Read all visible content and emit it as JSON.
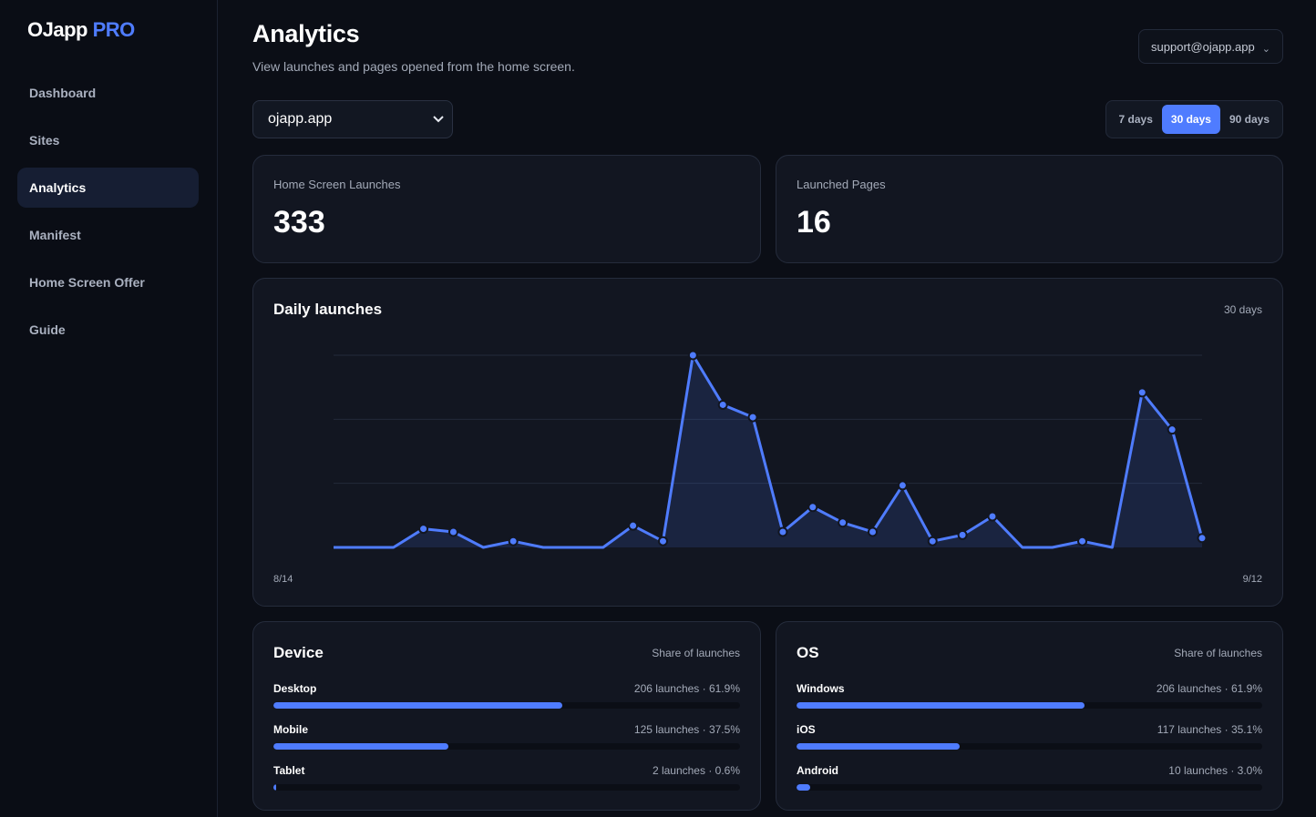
{
  "brand": {
    "name": "OJapp",
    "suffix": "PRO"
  },
  "sidebar": {
    "items": [
      {
        "label": "Dashboard",
        "active": false
      },
      {
        "label": "Sites",
        "active": false
      },
      {
        "label": "Analytics",
        "active": true
      },
      {
        "label": "Manifest",
        "active": false
      },
      {
        "label": "Home Screen Offer",
        "active": false
      },
      {
        "label": "Guide",
        "active": false
      }
    ]
  },
  "header": {
    "title": "Analytics",
    "subtitle": "View launches and pages opened from the home screen.",
    "account": "support@ojapp.app"
  },
  "filters": {
    "site": "ojapp.app",
    "ranges": [
      {
        "label": "7 days",
        "active": false
      },
      {
        "label": "30 days",
        "active": true
      },
      {
        "label": "90 days",
        "active": false
      }
    ]
  },
  "stats": {
    "launches": {
      "label": "Home Screen Launches",
      "value": "333"
    },
    "pages": {
      "label": "Launched Pages",
      "value": "16"
    }
  },
  "daily": {
    "title": "Daily launches",
    "note": "30 days",
    "x_start": "8/14",
    "x_end": "9/12"
  },
  "chart_data": {
    "type": "line",
    "title": "Daily launches",
    "x": [
      "8/14",
      "8/15",
      "8/16",
      "8/17",
      "8/18",
      "8/19",
      "8/20",
      "8/21",
      "8/22",
      "8/23",
      "8/24",
      "8/25",
      "8/26",
      "8/27",
      "8/28",
      "8/29",
      "8/30",
      "8/31",
      "9/1",
      "9/2",
      "9/3",
      "9/4",
      "9/5",
      "9/6",
      "9/7",
      "9/8",
      "9/9",
      "9/10",
      "9/11",
      "9/12"
    ],
    "values": [
      0,
      0,
      0,
      3,
      2.5,
      0,
      1,
      0,
      0,
      0,
      3.5,
      1,
      31,
      23,
      21,
      2.5,
      6.5,
      4,
      2.5,
      10,
      1,
      2,
      5,
      0,
      0,
      1,
      0,
      25,
      19,
      1.5
    ],
    "ylim": [
      0,
      31
    ],
    "grid": true,
    "tick_labels_x": [
      "8/14",
      "9/12"
    ],
    "color": "#4f7cff"
  },
  "device": {
    "title": "Device",
    "note": "Share of launches",
    "rows": [
      {
        "name": "Desktop",
        "info": "206 launches · 61.9%",
        "share": 61.9
      },
      {
        "name": "Mobile",
        "info": "125 launches · 37.5%",
        "share": 37.5
      },
      {
        "name": "Tablet",
        "info": "2 launches · 0.6%",
        "share": 0.6
      }
    ]
  },
  "os": {
    "title": "OS",
    "note": "Share of launches",
    "rows": [
      {
        "name": "Windows",
        "info": "206 launches · 61.9%",
        "share": 61.9
      },
      {
        "name": "iOS",
        "info": "117 launches · 35.1%",
        "share": 35.1
      },
      {
        "name": "Android",
        "info": "10 launches · 3.0%",
        "share": 3.0
      }
    ]
  },
  "colors": {
    "accent": "#4f7cff",
    "background": "#0b0e16",
    "card": "#121621"
  }
}
